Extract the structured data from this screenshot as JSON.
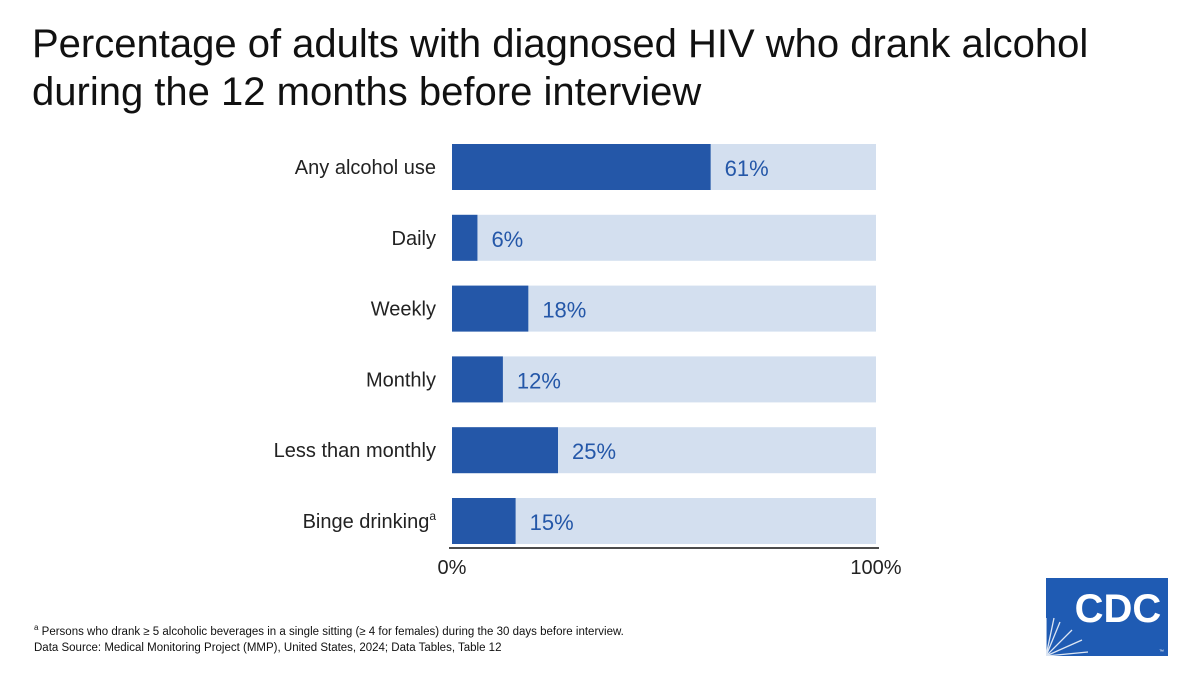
{
  "title": "Percentage of adults with diagnosed HIV who drank alcohol during the 12 months before interview",
  "colors": {
    "bar": "#2457a8",
    "track": "#d3dfef",
    "axis": "#111111",
    "logo": "#1f5bb3"
  },
  "chart_data": {
    "type": "bar",
    "orientation": "horizontal",
    "categories": [
      "Any alcohol use",
      "Daily",
      "Weekly",
      "Monthly",
      "Less than monthly",
      "Binge drinking"
    ],
    "category_superscripts": [
      "",
      "",
      "",
      "",
      "",
      "a"
    ],
    "values": [
      61,
      6,
      18,
      12,
      25,
      15
    ],
    "value_labels": [
      "61%",
      "6%",
      "18%",
      "12%",
      "25%",
      "15%"
    ],
    "xlim": [
      0,
      100
    ],
    "xticks": [
      0,
      100
    ],
    "xtick_labels": [
      "0%",
      "100%"
    ],
    "grid": false,
    "legend": "none"
  },
  "footnotes": {
    "note_marker": "a",
    "note_text": "Persons who drank ≥ 5 alcoholic beverages in a single sitting (≥ 4 for females) during the 30 days before interview.",
    "source": "Data Source: Medical Monitoring Project (MMP), United States, 2024; Data Tables, Table 12"
  },
  "logo": {
    "text": "CDC",
    "icon": "cdc-logo-icon"
  }
}
